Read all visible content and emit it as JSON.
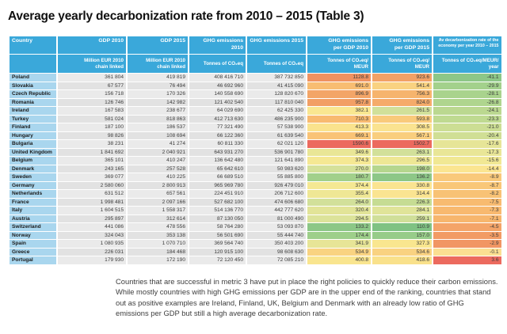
{
  "title": "Average yearly decarbonization rate from 2010 – 2015 (Table 3)",
  "colors": {
    "header_bg": "#3aa8da",
    "country_bg": "#a9d6ee",
    "row_light": "#eaeaea",
    "row_dark": "#e2e2e2",
    "scale_green": "#8dc787",
    "scale_yellow": "#fbe591",
    "scale_orange": "#f8ba70",
    "scale_red": "#ec6a5e"
  },
  "table": {
    "columns": [
      {
        "label": "Country",
        "unit": ""
      },
      {
        "label": "GDP 2010",
        "unit": "Million EUR 2010\nchain linked"
      },
      {
        "label": "GDP 2015",
        "unit": "Million EUR 2010\nchain linked"
      },
      {
        "label": "GHG emissions 2010",
        "unit": "Tonnes of CO₂eq"
      },
      {
        "label": "GHG emissions 2015",
        "unit": "Tonnes of CO₂eq"
      },
      {
        "label": "GHG emissions\nper GDP 2010",
        "unit": "Tonnes of CO₂eq/\nMEUR"
      },
      {
        "label": "GHG emissions\nper GDP 2015",
        "unit": "Tonnes of CO₂eq/\nMEUR"
      },
      {
        "label": "Av decarbonization rate of the\neconomy per year 2010 – 2015",
        "unit": "Tonnes of CO₂eq/MEUR/\nyear"
      }
    ],
    "rows": [
      {
        "country": "Poland",
        "gdp2010": "361 804",
        "gdp2015": "419 819",
        "ghg2010": "408 416 710",
        "ghg2015": "387 732 850",
        "i2010": "1128.8",
        "i2015": "923.6",
        "rate": "-41.1",
        "c1": "#ef9261",
        "c2": "#f2a166",
        "c3": "#8dc787"
      },
      {
        "country": "Slovakia",
        "gdp2010": "67 577",
        "gdp2015": "76 494",
        "ghg2010": "46 692 960",
        "ghg2015": "41 415 090",
        "i2010": "691.0",
        "i2015": "541.4",
        "rate": "-29.9",
        "c1": "#f8bd72",
        "c2": "#f9d281",
        "c3": "#a3d18c"
      },
      {
        "country": "Czech Republic",
        "gdp2010": "156 718",
        "gdp2015": "170 326",
        "ghg2010": "140 558 690",
        "ghg2015": "128 820 670",
        "i2010": "896.9",
        "i2015": "756.3",
        "rate": "-28.1",
        "c1": "#f3a567",
        "c2": "#f6b46d",
        "c3": "#a9d38d"
      },
      {
        "country": "Romania",
        "gdp2010": "126 746",
        "gdp2015": "142 982",
        "ghg2010": "121 402 540",
        "ghg2015": "117 810 040",
        "i2010": "957.8",
        "i2015": "824.0",
        "rate": "-26.8",
        "c1": "#f29f65",
        "c2": "#f5ab6a",
        "c3": "#afd58e"
      },
      {
        "country": "Ireland",
        "gdp2010": "167 583",
        "gdp2015": "238 677",
        "ghg2010": "64 029 690",
        "ghg2015": "62 425 330",
        "i2010": "382.1",
        "i2015": "261.5",
        "rate": "-24.1",
        "c1": "#f9e791",
        "c2": "#d1e09a",
        "c3": "#bbd890"
      },
      {
        "country": "Turkey",
        "gdp2010": "581 024",
        "gdp2015": "818 863",
        "ghg2010": "412 713 630",
        "ghg2015": "486 235 900",
        "i2010": "710.3",
        "i2015": "593.8",
        "rate": "-23.3",
        "c1": "#f8ba70",
        "c2": "#f9ca7b",
        "c3": "#bfda91"
      },
      {
        "country": "Finland",
        "gdp2010": "187 100",
        "gdp2015": "186 537",
        "ghg2010": "77 321 490",
        "ghg2015": "57 538 900",
        "i2010": "413.3",
        "i2015": "308.5",
        "rate": "-21.0",
        "c1": "#fae38d",
        "c2": "#fae390",
        "c3": "#ccde94"
      },
      {
        "country": "Hungary",
        "gdp2010": "98 826",
        "gdp2015": "108 694",
        "ghg2010": "66 122 360",
        "ghg2015": "61 639 540",
        "i2010": "669.1",
        "i2015": "567.1",
        "rate": "-20.4",
        "c1": "#f9c376",
        "c2": "#f9ce7e",
        "c3": "#d0df95"
      },
      {
        "country": "Bulgaria",
        "gdp2010": "38 231",
        "gdp2015": "41 274",
        "ghg2010": "60 811 330",
        "ghg2015": "62 021 120",
        "i2010": "1590.6",
        "i2015": "1502.7",
        "rate": "-17.6",
        "c1": "#ec6a5e",
        "c2": "#ec6a5e",
        "c3": "#e6e597"
      },
      {
        "country": "United Kingdom",
        "gdp2010": "1 841 692",
        "gdp2015": "2 040 921",
        "ghg2010": "643 931 270",
        "ghg2015": "536 901 780",
        "i2010": "349.6",
        "i2015": "263.1",
        "rate": "-17.3",
        "c1": "#e9e696",
        "c2": "#d2e09a",
        "c3": "#e9e697"
      },
      {
        "country": "Belgium",
        "gdp2010": "365 101",
        "gdp2015": "410 247",
        "ghg2010": "136 642 480",
        "ghg2015": "121 641 890",
        "i2010": "374.3",
        "i2015": "296.5",
        "rate": "-15.6",
        "c1": "#f5e893",
        "c2": "#eee795",
        "c3": "#f1e894"
      },
      {
        "country": "Denmark",
        "gdp2010": "243 165",
        "gdp2015": "257 528",
        "ghg2010": "65 642 610",
        "ghg2015": "50 983 620",
        "i2010": "270.0",
        "i2015": "198.0",
        "rate": "-14.4",
        "c1": "#d5e19a",
        "c2": "#b5d68e",
        "c3": "#fbe591"
      },
      {
        "country": "Sweden",
        "gdp2010": "369 077",
        "gdp2015": "410 225",
        "ghg2010": "66 689 510",
        "ghg2015": "55 885 800",
        "i2010": "180.7",
        "i2015": "136.2",
        "rate": "-8.9",
        "c1": "#a2d08b",
        "c2": "#8dc787",
        "c3": "#f9c97b"
      },
      {
        "country": "Germany",
        "gdp2010": "2 580 060",
        "gdp2015": "2 800 913",
        "ghg2010": "965 969 780",
        "ghg2015": "926 479 010",
        "i2010": "374.4",
        "i2015": "330.8",
        "rate": "-8.7",
        "c1": "#f5e893",
        "c2": "#fae491",
        "c3": "#f9c778"
      },
      {
        "country": "Netherlands",
        "gdp2010": "631 512",
        "gdp2015": "657 561",
        "ghg2010": "224 451 910",
        "ghg2015": "206 712 600",
        "i2010": "355.4",
        "i2015": "314.4",
        "rate": "-8.2",
        "c1": "#efe795",
        "c2": "#fae491",
        "c3": "#f8c275"
      },
      {
        "country": "France",
        "gdp2010": "1 998 481",
        "gdp2015": "2 097 166",
        "ghg2010": "527 682 100",
        "ghg2015": "474 606 680",
        "i2010": "264.0",
        "i2015": "226.3",
        "rate": "-7.5",
        "c1": "#d2e09a",
        "c2": "#c6dc93",
        "c3": "#f8bb70"
      },
      {
        "country": "Italy",
        "gdp2010": "1 604 515",
        "gdp2015": "1 558 317",
        "ghg2010": "514 136 770",
        "ghg2015": "442 777 620",
        "i2010": "320.4",
        "i2015": "284.1",
        "rate": "-7.3",
        "c1": "#e2e498",
        "c2": "#e0e499",
        "c3": "#f8b96f"
      },
      {
        "country": "Austria",
        "gdp2010": "295 897",
        "gdp2015": "312 614",
        "ghg2010": "87 130 050",
        "ghg2015": "81 000 490",
        "i2010": "294.5",
        "i2015": "259.1",
        "rate": "-7.1",
        "c1": "#dce39a",
        "c2": "#d0df99",
        "c3": "#f7b66d"
      },
      {
        "country": "Switzerland",
        "gdp2010": "441 086",
        "gdp2015": "478 556",
        "ghg2010": "58 764 280",
        "ghg2015": "53 093 870",
        "i2010": "133.2",
        "i2015": "110.9",
        "rate": "-4.5",
        "c1": "#8cc786",
        "c2": "#7fc283",
        "c3": "#f4a468"
      },
      {
        "country": "Norway",
        "gdp2010": "324 043",
        "gdp2015": "353 138",
        "ghg2010": "56 501 690",
        "ghg2015": "55 444 740",
        "i2010": "174.4",
        "i2015": "157.0",
        "rate": "-3.5",
        "c1": "#9ecf8a",
        "c2": "#97cc89",
        "c3": "#f29b64"
      },
      {
        "country": "Spain",
        "gdp2010": "1 080 935",
        "gdp2015": "1 070 710",
        "ghg2010": "369 564 740",
        "ghg2015": "350 403 200",
        "i2010": "341.9",
        "i2015": "327.3",
        "rate": "-2.9",
        "c1": "#e7e597",
        "c2": "#f9e68f",
        "c3": "#f19663"
      },
      {
        "country": "Greece",
        "gdp2010": "226 031",
        "gdp2015": "184 468",
        "ghg2010": "120 915 100",
        "ghg2015": "98 608 630",
        "i2010": "534.9",
        "i2015": "534.6",
        "rate": "-0.1",
        "c1": "#f9d381",
        "c2": "#f9d281",
        "c3": "#fbdf92"
      },
      {
        "country": "Portugal",
        "gdp2010": "179 930",
        "gdp2015": "172 190",
        "ghg2010": "72 120 450",
        "ghg2015": "72 085 210",
        "i2010": "400.8",
        "i2015": "418.6",
        "rate": "3.6",
        "c1": "#f9e58f",
        "c2": "#f9e18b",
        "c3": "#ec6a5e"
      }
    ]
  },
  "footer": "Countries that are successful in metric 3 have put in place the right policies to quickly reduce their carbon emissions. While mostly countries with high GHG emissions per GDP are in the upper end of the ranking, countries that stand out as positive examples are Ireland, Finland, UK, Belgium and Denmark with an already low ratio of GHG emissions per GDP but still a high average decarbonization rate."
}
